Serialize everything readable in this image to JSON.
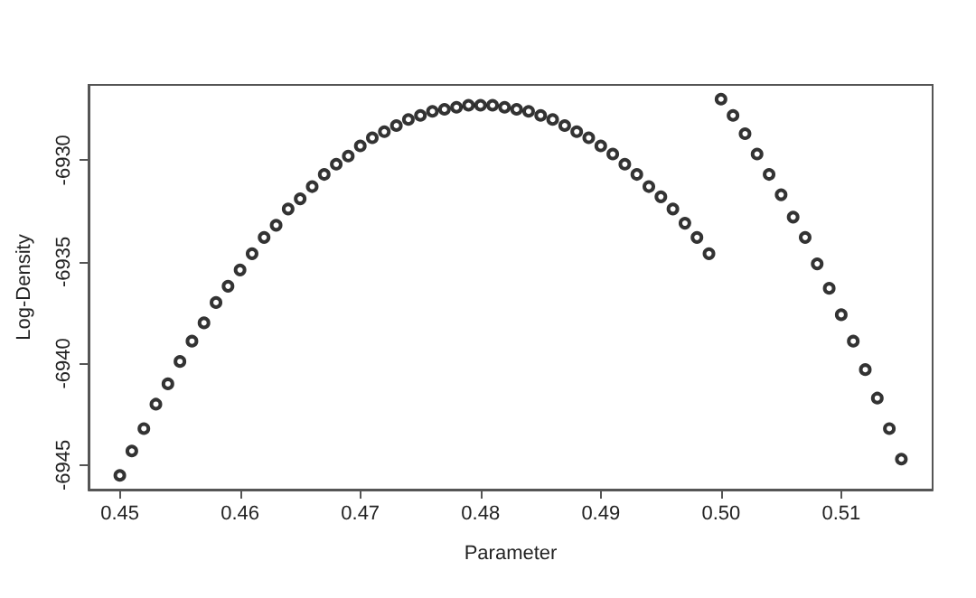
{
  "chart_data": {
    "type": "scatter",
    "xlabel": "Parameter",
    "ylabel": "Log-Density",
    "marker": "circle",
    "grid": false,
    "xlim": [
      0.4474,
      0.5176
    ],
    "ylim": [
      -6946.2,
      -6926.3
    ],
    "xticks": [
      0.45,
      0.46,
      0.47,
      0.48,
      0.49,
      {
        "value": 0.5,
        "label": "0.50"
      },
      0.51
    ],
    "yticks": [
      -6945,
      -6940,
      -6935,
      -6930
    ],
    "series": [
      {
        "color": "#000000",
        "x": [
          0.45,
          0.451,
          0.452,
          0.453,
          0.454,
          0.455,
          0.456,
          0.457,
          0.458,
          0.459,
          0.46,
          0.461,
          0.462,
          0.463,
          0.464,
          0.465,
          0.466,
          0.467,
          0.468,
          0.469,
          0.47,
          0.471,
          0.472,
          0.473,
          0.474,
          0.475,
          0.476,
          0.477,
          0.478,
          0.479,
          0.48,
          0.481,
          0.482,
          0.483,
          0.484,
          0.485,
          0.486,
          0.487,
          0.488,
          0.489,
          0.49,
          0.491,
          0.492,
          0.493,
          0.494,
          0.495,
          0.496,
          0.497,
          0.498,
          0.499,
          0.5,
          0.501,
          0.502,
          0.503,
          0.504,
          0.505,
          0.506,
          0.507,
          0.508,
          0.509,
          0.51,
          0.511,
          0.512,
          0.513,
          0.514,
          0.515
        ],
        "values": [
          -6945.5,
          -6944.3,
          -6943.2,
          -6942.0,
          -6941.0,
          -6939.9,
          -6938.9,
          -6938.0,
          -6937.0,
          -6936.2,
          -6935.4,
          -6934.6,
          -6933.8,
          -6933.2,
          -6932.4,
          -6931.9,
          -6931.3,
          -6930.7,
          -6930.2,
          -6929.8,
          -6929.3,
          -6928.9,
          -6928.6,
          -6928.3,
          -6928.0,
          -6927.8,
          -6927.6,
          -6927.5,
          -6927.4,
          -6927.3,
          -6927.3,
          -6927.3,
          -6927.4,
          -6927.5,
          -6927.6,
          -6927.8,
          -6928.0,
          -6928.3,
          -6928.6,
          -6928.9,
          -6929.3,
          -6929.7,
          -6930.2,
          -6930.7,
          -6931.3,
          -6931.8,
          -6932.4,
          -6933.1,
          -6933.8,
          -6934.6,
          -6927.0,
          -6927.8,
          -6928.7,
          -6929.7,
          -6930.7,
          -6931.7,
          -6932.8,
          -6933.8,
          -6935.1,
          -6936.3,
          -6937.6,
          -6938.9,
          -6940.3,
          -6941.7,
          -6943.2,
          -6944.7
        ]
      }
    ]
  }
}
